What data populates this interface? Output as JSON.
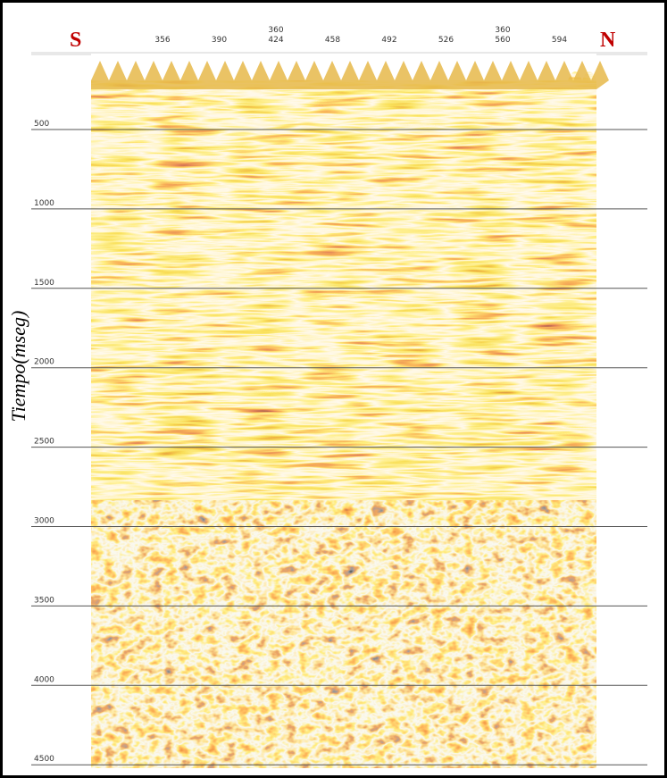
{
  "direction_left": "S",
  "direction_right": "N",
  "top_labels": [
    [
      "356"
    ],
    [
      "390"
    ],
    [
      "360",
      "424"
    ],
    [
      "458"
    ],
    [
      "492"
    ],
    [
      "526"
    ],
    [
      "360",
      "560"
    ],
    [
      "594"
    ]
  ],
  "y_axis_label": "Tiempo(mseg)",
  "time_labels": [
    "500",
    "1000",
    "1500",
    "2000",
    "2500",
    "3000",
    "3500",
    "4000",
    "4500"
  ]
}
